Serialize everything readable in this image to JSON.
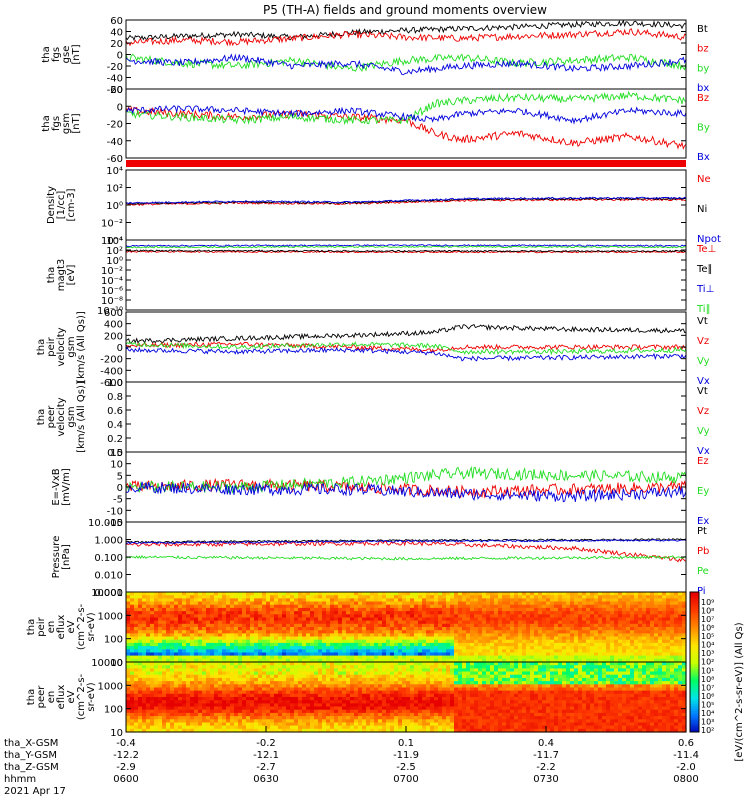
{
  "title": "P5 (TH-A) fields and ground moments overview",
  "colors": {
    "black": "#000000",
    "red": "#ee0000",
    "green": "#22dd22",
    "blue": "#0000dd"
  },
  "chart_data": [
    {
      "type": "line",
      "panel": "fgs_gse",
      "ylabel_lines": [
        "tha",
        "fgs",
        "gse",
        "[nT]"
      ],
      "yticks": [
        "60",
        "40",
        "20",
        "0",
        "-20",
        "-40",
        "-60"
      ],
      "ylim": [
        -60,
        60
      ],
      "legend": [
        {
          "text": "Bt",
          "color": "black"
        },
        {
          "text": "bz",
          "color": "red"
        },
        {
          "text": "by",
          "color": "green"
        },
        {
          "text": "bx",
          "color": "blue"
        }
      ],
      "series": [
        {
          "name": "Bt",
          "color": "black",
          "x": [
            0,
            0.1,
            0.2,
            0.3,
            0.4,
            0.5,
            0.6,
            0.7,
            0.8,
            0.9,
            1.0
          ],
          "y": [
            28,
            32,
            35,
            30,
            38,
            42,
            45,
            48,
            52,
            55,
            50
          ],
          "noise": 5
        },
        {
          "name": "bz",
          "color": "red",
          "x": [
            0,
            0.1,
            0.2,
            0.3,
            0.4,
            0.5,
            0.6,
            0.7,
            0.8,
            0.9,
            1.0
          ],
          "y": [
            20,
            25,
            22,
            28,
            35,
            30,
            28,
            32,
            35,
            40,
            30
          ],
          "noise": 6
        },
        {
          "name": "by",
          "color": "green",
          "x": [
            0,
            0.1,
            0.2,
            0.3,
            0.4,
            0.5,
            0.6,
            0.7,
            0.8,
            0.9,
            1.0
          ],
          "y": [
            -5,
            -15,
            -20,
            -10,
            -25,
            -10,
            -5,
            -15,
            -10,
            -5,
            -20
          ],
          "noise": 7
        },
        {
          "name": "bx",
          "color": "blue",
          "x": [
            0,
            0.1,
            0.2,
            0.3,
            0.4,
            0.5,
            0.6,
            0.7,
            0.8,
            0.9,
            1.0
          ],
          "y": [
            -10,
            -15,
            -5,
            -20,
            -15,
            -30,
            -20,
            -15,
            -25,
            -20,
            -10
          ],
          "noise": 6
        }
      ]
    },
    {
      "type": "line",
      "panel": "fgs_gsm",
      "ylabel_lines": [
        "tha",
        "fgs",
        "gsm",
        "[nT]"
      ],
      "yticks": [
        "20",
        "0",
        "-20",
        "-40",
        "-60"
      ],
      "ylim": [
        -68,
        38
      ],
      "legend": [
        {
          "text": "Bz",
          "color": "red"
        },
        {
          "text": "By",
          "color": "green"
        },
        {
          "text": "Bx",
          "color": "blue"
        }
      ],
      "series": [
        {
          "name": "Bz",
          "color": "red",
          "x": [
            0,
            0.1,
            0.2,
            0.3,
            0.4,
            0.5,
            0.55,
            0.6,
            0.7,
            0.8,
            0.9,
            1.0
          ],
          "y": [
            5,
            0,
            -5,
            0,
            -5,
            -10,
            -30,
            -40,
            -30,
            -45,
            -35,
            -50
          ],
          "noise": 6
        },
        {
          "name": "By",
          "color": "green",
          "x": [
            0,
            0.1,
            0.2,
            0.3,
            0.4,
            0.5,
            0.55,
            0.6,
            0.7,
            0.8,
            0.9,
            1.0
          ],
          "y": [
            0,
            -5,
            -10,
            -5,
            -10,
            -10,
            15,
            20,
            25,
            22,
            28,
            20
          ],
          "noise": 6
        },
        {
          "name": "Bx",
          "color": "blue",
          "x": [
            0,
            0.1,
            0.2,
            0.3,
            0.4,
            0.5,
            0.55,
            0.6,
            0.7,
            0.8,
            0.9,
            1.0
          ],
          "y": [
            5,
            8,
            5,
            0,
            5,
            -5,
            -10,
            0,
            5,
            -10,
            5,
            0
          ],
          "noise": 5
        }
      ]
    },
    {
      "type": "line",
      "panel": "density",
      "log": true,
      "ylabel_lines": [
        "Density",
        "[1/cc]",
        "[cm-3]"
      ],
      "yticks": [
        "10⁴",
        "10²",
        "10⁰",
        "10⁻²",
        "10⁻⁴"
      ],
      "ylim": [
        -4,
        4.5
      ],
      "legend": [
        {
          "text": "Ne",
          "color": "red"
        },
        {
          "text": "Ni",
          "color": "black"
        },
        {
          "text": "Npot",
          "color": "blue"
        }
      ],
      "series": [
        {
          "name": "Ne",
          "color": "red",
          "x": [
            0,
            0.2,
            0.4,
            0.6,
            0.8,
            1.0
          ],
          "y": [
            0.3,
            0.5,
            0.4,
            0.8,
            0.9,
            0.9
          ],
          "noise": 0.12
        },
        {
          "name": "Ni",
          "color": "black",
          "x": [
            0,
            0.2,
            0.4,
            0.6,
            0.8,
            1.0
          ],
          "y": [
            0.4,
            0.6,
            0.5,
            0.9,
            1.0,
            1.0
          ],
          "noise": 0.1
        },
        {
          "name": "Npot",
          "color": "blue",
          "x": [
            0,
            0.2,
            0.4,
            0.6,
            0.8,
            1.0
          ],
          "y": [
            0.5,
            0.7,
            0.6,
            1.0,
            1.1,
            1.1
          ],
          "noise": 0.1
        }
      ]
    },
    {
      "type": "line",
      "panel": "temperature",
      "log": true,
      "ylabel_lines": [
        "tha",
        "magt3",
        "[eV]"
      ],
      "yticks": [
        "10⁴",
        "10²",
        "10⁰",
        "10⁻²",
        "10⁻⁴",
        "10⁻⁶",
        "10⁻⁸",
        "10⁻¹⁰"
      ],
      "ylim": [
        -10,
        4.5
      ],
      "legend": [
        {
          "text": "Te⊥",
          "color": "red"
        },
        {
          "text": "Te∥",
          "color": "black"
        },
        {
          "text": "Ti⊥",
          "color": "blue"
        },
        {
          "text": "Ti∥",
          "color": "green"
        }
      ],
      "series": [
        {
          "name": "Te⊥",
          "color": "red",
          "x": [
            0,
            0.5,
            1.0
          ],
          "y": [
            2.1,
            2.0,
            2.0
          ],
          "noise": 0.15
        },
        {
          "name": "Te∥",
          "color": "black",
          "x": [
            0,
            0.5,
            1.0
          ],
          "y": [
            2.3,
            2.2,
            2.2
          ],
          "noise": 0.15
        },
        {
          "name": "Ti⊥",
          "color": "blue",
          "x": [
            0,
            0.5,
            1.0
          ],
          "y": [
            3.3,
            3.4,
            3.3
          ],
          "noise": 0.15
        },
        {
          "name": "Ti∥",
          "color": "green",
          "x": [
            0,
            0.5,
            1.0
          ],
          "y": [
            3.0,
            3.1,
            3.0
          ],
          "noise": 0.15
        }
      ]
    },
    {
      "type": "line",
      "panel": "peir_velocity",
      "ylabel_lines": [
        "tha",
        "peir",
        "velocity",
        "gsm",
        "[km/s (All Qs)]"
      ],
      "yticks": [
        "600",
        "400",
        "200",
        "0",
        "-200",
        "-400",
        "-600"
      ],
      "ylim": [
        -600,
        600
      ],
      "legend": [
        {
          "text": "Vt",
          "color": "black"
        },
        {
          "text": "Vz",
          "color": "red"
        },
        {
          "text": "Vy",
          "color": "green"
        },
        {
          "text": "Vx",
          "color": "blue"
        }
      ],
      "series": [
        {
          "name": "Vt",
          "color": "black",
          "x": [
            0,
            0.2,
            0.4,
            0.55,
            0.6,
            0.8,
            1.0
          ],
          "y": [
            100,
            150,
            200,
            250,
            350,
            300,
            280
          ],
          "noise": 40
        },
        {
          "name": "Vz",
          "color": "red",
          "x": [
            0,
            0.2,
            0.4,
            0.55,
            0.6,
            0.8,
            1.0
          ],
          "y": [
            20,
            50,
            0,
            -50,
            0,
            0,
            0
          ],
          "noise": 40
        },
        {
          "name": "Vy",
          "color": "green",
          "x": [
            0,
            0.2,
            0.4,
            0.55,
            0.6,
            0.8,
            1.0
          ],
          "y": [
            50,
            0,
            50,
            20,
            -80,
            -80,
            -50
          ],
          "noise": 40
        },
        {
          "name": "Vx",
          "color": "blue",
          "x": [
            0,
            0.2,
            0.4,
            0.55,
            0.6,
            0.8,
            1.0
          ],
          "y": [
            -50,
            -80,
            -50,
            -100,
            -200,
            -180,
            -150
          ],
          "noise": 40
        }
      ]
    },
    {
      "type": "line",
      "panel": "peer_velocity",
      "ylabel_lines": [
        "tha",
        "peer",
        "velocity",
        "gsm",
        "[km/s (All Qs)]"
      ],
      "yticks": [
        "1.0",
        "0.8",
        "0.6",
        "0.4",
        "0.2",
        "0.0"
      ],
      "ylim": [
        0,
        1
      ],
      "legend": [
        {
          "text": "Vt",
          "color": "black"
        },
        {
          "text": "Vz",
          "color": "red"
        },
        {
          "text": "Vy",
          "color": "green"
        },
        {
          "text": "Vx",
          "color": "blue"
        }
      ],
      "series": []
    },
    {
      "type": "line",
      "panel": "efield",
      "ylabel_lines": [
        "E=-VxB",
        "[mV/m]"
      ],
      "yticks": [
        "15",
        "10",
        "5",
        "0",
        "-5",
        "-10",
        "-15"
      ],
      "ylim": [
        -15,
        15
      ],
      "legend": [
        {
          "text": "Ez",
          "color": "red"
        },
        {
          "text": "Ey",
          "color": "green"
        },
        {
          "text": "Ex",
          "color": "blue"
        }
      ],
      "series": [
        {
          "name": "Ez",
          "color": "red",
          "x": [
            0,
            0.2,
            0.4,
            0.6,
            0.8,
            1.0
          ],
          "y": [
            0,
            1,
            0,
            -2,
            -1,
            0
          ],
          "noise": 2.5
        },
        {
          "name": "Ey",
          "color": "green",
          "x": [
            0,
            0.2,
            0.4,
            0.6,
            0.8,
            1.0
          ],
          "y": [
            0,
            0,
            2,
            6,
            5,
            4
          ],
          "noise": 2.5
        },
        {
          "name": "Ex",
          "color": "blue",
          "x": [
            0,
            0.2,
            0.4,
            0.6,
            0.8,
            1.0
          ],
          "y": [
            0,
            -1,
            -1,
            -3,
            -4,
            -2
          ],
          "noise": 2.5
        }
      ]
    },
    {
      "type": "line",
      "panel": "pressure",
      "log": true,
      "ylabel_lines": [
        "Pressure",
        "[nPa]"
      ],
      "yticks": [
        "10.000",
        "1.000",
        "0.100",
        "0.010",
        "0.001"
      ],
      "ylim": [
        -3,
        1
      ],
      "legend": [
        {
          "text": "Pt",
          "color": "black"
        },
        {
          "text": "Pb",
          "color": "red"
        },
        {
          "text": "Pe",
          "color": "green"
        },
        {
          "text": "Pi",
          "color": "blue"
        }
      ],
      "series": [
        {
          "name": "Pt",
          "color": "black",
          "x": [
            0,
            0.5,
            1.0
          ],
          "y": [
            -0.15,
            -0.05,
            0.0
          ],
          "noise": 0.05
        },
        {
          "name": "Pb",
          "color": "red",
          "x": [
            0,
            0.5,
            0.8,
            1.0
          ],
          "y": [
            -0.3,
            -0.2,
            -0.5,
            -1.2
          ],
          "noise": 0.12
        },
        {
          "name": "Pe",
          "color": "green",
          "x": [
            0,
            0.5,
            1.0
          ],
          "y": [
            -1.0,
            -1.1,
            -1.0
          ],
          "noise": 0.08
        },
        {
          "name": "Pi",
          "color": "blue",
          "x": [
            0,
            0.5,
            1.0
          ],
          "y": [
            -0.2,
            -0.1,
            -0.05
          ],
          "noise": 0.05
        }
      ]
    },
    {
      "type": "heatmap",
      "panel": "peir_eflux",
      "ylabel_lines": [
        "tha",
        "peir",
        "en",
        "eflux",
        "eV",
        "(cm^2-s-",
        "sr-eV)"
      ],
      "yticks": [
        "10000",
        "1000",
        "100",
        "10"
      ]
    },
    {
      "type": "heatmap",
      "panel": "peer_eflux",
      "ylabel_lines": [
        "tha",
        "peer",
        "en",
        "eflux",
        "eV",
        "(cm^2-s-",
        "sr-eV)"
      ],
      "yticks": [
        "10000",
        "1000",
        "100",
        "10"
      ]
    }
  ],
  "colorbar": {
    "label": "[eV/(cm^2-s-sr-eV)] (All Qs)",
    "ticks": [
      "10⁹",
      "10⁸",
      "10⁷",
      "10⁶",
      "10⁵",
      "10⁴",
      "10³",
      "10²",
      "10¹",
      "10⁸",
      "10⁷",
      "10⁶",
      "10⁵",
      "10⁴",
      "10³",
      "10²"
    ],
    "colors": [
      "#ff0000",
      "#ff8800",
      "#ffff00",
      "#00ff00",
      "#00ffff",
      "#0000ff",
      "#ff00ff"
    ]
  },
  "xaxis": {
    "rows": [
      {
        "label": "tha_X-GSM",
        "values": [
          "-0.4",
          "-0.2",
          "0.1",
          "0.4",
          "0.6"
        ]
      },
      {
        "label": "tha_Y-GSM",
        "values": [
          "-12.2",
          "-12.1",
          "-11.9",
          "-11.7",
          "-11.4"
        ]
      },
      {
        "label": "tha_Z-GSM",
        "values": [
          "-2.9",
          "-2.7",
          "-2.5",
          "-2.2",
          "-2.0"
        ]
      },
      {
        "label": "hhmm",
        "values": [
          "0600",
          "0630",
          "0700",
          "0730",
          "0800"
        ]
      }
    ],
    "date": "2021 Apr 17"
  }
}
